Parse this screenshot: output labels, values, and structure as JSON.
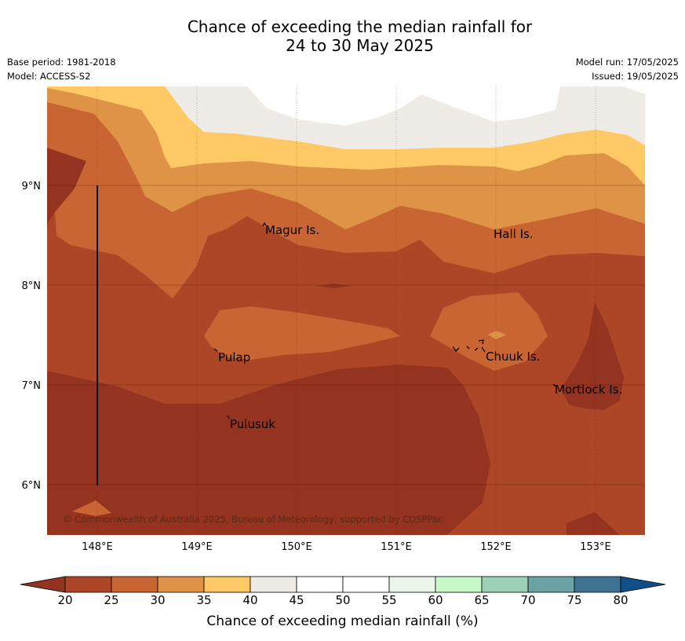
{
  "title": {
    "line1": "Chance of exceeding the median rainfall for",
    "line2": "24 to 30 May 2025"
  },
  "meta": {
    "base_period": "Base period: 1981-2018",
    "model": "Model: ACCESS-S2",
    "model_run": "Model run: 17/05/2025",
    "issued": "Issued: 19/05/2025"
  },
  "map": {
    "lon_ticks": [
      "148°E",
      "149°E",
      "150°E",
      "151°E",
      "152°E",
      "153°E"
    ],
    "lat_ticks": [
      "9°N",
      "8°N",
      "7°N",
      "6°N"
    ],
    "places": [
      "Magur Is.",
      "Hall Is.",
      "Pulap",
      "Chuuk Is.",
      "Mortlock Is.",
      "Pulusuk"
    ],
    "copyright": "© Commonwealth of Australia 2025, Bureau of Meteorology, supported by COSPPac"
  },
  "colorbar": {
    "ticks": [
      "20",
      "25",
      "30",
      "35",
      "40",
      "45",
      "50",
      "55",
      "60",
      "65",
      "70",
      "75",
      "80"
    ],
    "colors": [
      "#ac4627",
      "#c86532",
      "#df9346",
      "#ffc966",
      "#efebe6",
      "#ffffff",
      "#ffffff",
      "#eaf5ea",
      "#c8fac8",
      "#9dd1b6",
      "#6ba3a5",
      "#3f7393"
    ],
    "under_color": "#943320",
    "over_color": "#114f89",
    "label": "Chance of exceeding median rainfall (%)"
  }
}
